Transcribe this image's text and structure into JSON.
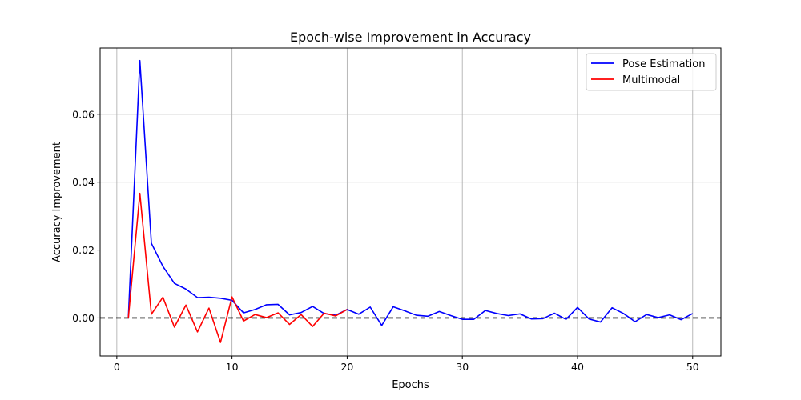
{
  "chart_data": {
    "type": "line",
    "title": "Epoch-wise Improvement in Accuracy",
    "xlabel": "Epochs",
    "ylabel": "Accuracy Improvement",
    "xlim": [
      -1.45,
      52.45
    ],
    "ylim": [
      -0.0112,
      0.0795
    ],
    "x_ticks": [
      0,
      10,
      20,
      30,
      40,
      50
    ],
    "y_ticks": [
      0.0,
      0.02,
      0.04,
      0.06
    ],
    "y_tick_labels": [
      "0.00",
      "0.02",
      "0.04",
      "0.06"
    ],
    "grid": true,
    "legend_position": "top-right",
    "reference_line": {
      "y": 0,
      "style": "dashed",
      "color": "#000000"
    },
    "series": [
      {
        "name": "Pose Estimation",
        "color": "#0000ff",
        "x": [
          1,
          2,
          3,
          4,
          5,
          6,
          7,
          8,
          9,
          10,
          11,
          12,
          13,
          14,
          15,
          16,
          17,
          18,
          19,
          20,
          21,
          22,
          23,
          24,
          25,
          26,
          27,
          28,
          29,
          30,
          31,
          32,
          33,
          34,
          35,
          36,
          37,
          38,
          39,
          40,
          41,
          42,
          43,
          44,
          45,
          46,
          47,
          48,
          49,
          50
        ],
        "values": [
          0.0,
          0.0758,
          0.022,
          0.0152,
          0.0102,
          0.0085,
          0.006,
          0.0061,
          0.0058,
          0.0052,
          0.0015,
          0.0025,
          0.0039,
          0.004,
          0.0009,
          0.0016,
          0.0034,
          0.0013,
          0.0008,
          0.0025,
          0.0011,
          0.0032,
          -0.0022,
          0.0033,
          0.0021,
          0.0008,
          0.0005,
          0.0019,
          0.0007,
          -0.0004,
          -0.0004,
          0.0022,
          0.0013,
          0.0007,
          0.0012,
          -0.0003,
          -0.0002,
          0.0014,
          -0.0004,
          0.0031,
          -0.0003,
          -0.0012,
          0.003,
          0.0013,
          -0.0011,
          0.001,
          0.0001,
          0.0009,
          -0.0005,
          0.0013
        ]
      },
      {
        "name": "Multimodal",
        "color": "#ff0000",
        "x": [
          1,
          2,
          3,
          4,
          5,
          6,
          7,
          8,
          9,
          10,
          11,
          12,
          13,
          14,
          15,
          16,
          17,
          18,
          19,
          20
        ],
        "values": [
          0.0,
          0.0367,
          0.0011,
          0.0061,
          -0.0027,
          0.0038,
          -0.0041,
          0.0029,
          -0.0072,
          0.0062,
          -0.0009,
          0.001,
          0.0001,
          0.0015,
          -0.0019,
          0.001,
          -0.0025,
          0.0014,
          0.0006,
          0.0025
        ]
      }
    ]
  }
}
